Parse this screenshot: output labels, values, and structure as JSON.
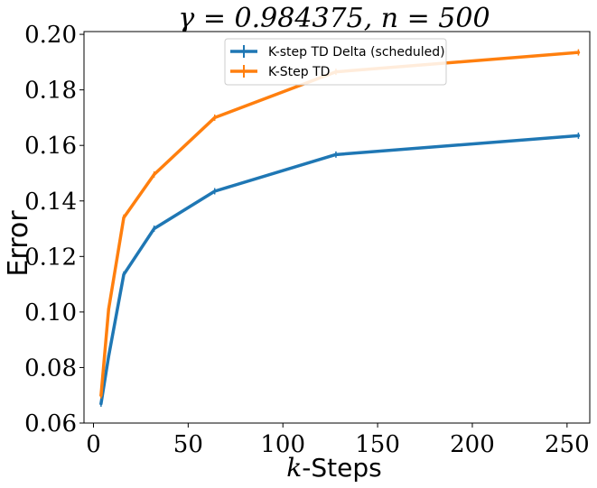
{
  "chart_data": {
    "type": "line",
    "title": "γ = 0.984375, n = 500",
    "xlabel": "k-Steps",
    "xlabel_italic_part": "k",
    "xlabel_rest": "-Steps",
    "ylabel": "Error",
    "xlim": [
      -5,
      262
    ],
    "ylim": [
      0.06,
      0.201
    ],
    "xticks": [
      0,
      50,
      100,
      150,
      200,
      250
    ],
    "xtick_labels": [
      "0",
      "50",
      "100",
      "150",
      "200",
      "250"
    ],
    "yticks": [
      0.06,
      0.08,
      0.1,
      0.12,
      0.14,
      0.16,
      0.18,
      0.2
    ],
    "ytick_labels": [
      "0.06",
      "0.08",
      "0.10",
      "0.12",
      "0.14",
      "0.16",
      "0.18",
      "0.20"
    ],
    "grid": false,
    "legend_position": "top-center",
    "series": [
      {
        "name": "K-step TD Delta (scheduled)",
        "color": "#1f77b4",
        "x": [
          4,
          8,
          16,
          32,
          64,
          128,
          256
        ],
        "y": [
          0.067,
          0.084,
          0.1135,
          0.13,
          0.1435,
          0.1567,
          0.1635
        ]
      },
      {
        "name": "K-Step TD",
        "color": "#ff7f0e",
        "x": [
          4,
          8,
          16,
          32,
          64,
          128,
          256
        ],
        "y": [
          0.07,
          0.101,
          0.134,
          0.1495,
          0.17,
          0.1865,
          0.1935
        ]
      }
    ]
  }
}
